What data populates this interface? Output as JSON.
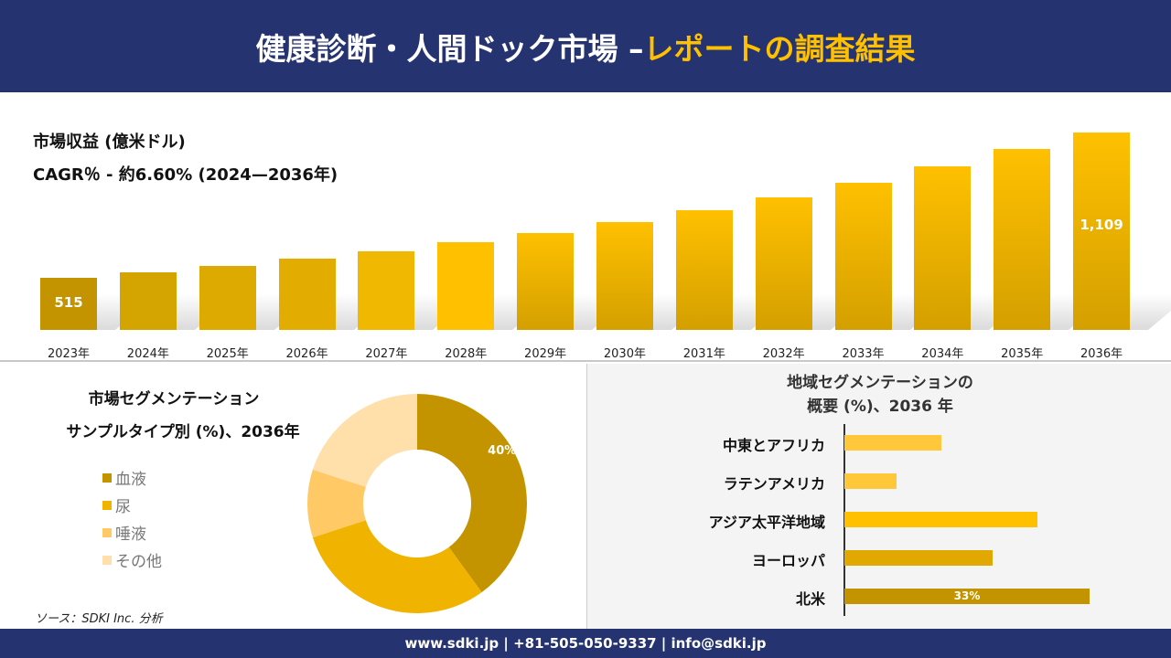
{
  "header": {
    "title_main": "健康診断・人間ドック市場 –",
    "title_accent": "レポートの調査結果"
  },
  "revenue": {
    "title": "市場収益 (億米ドル)",
    "cagr": "CAGR％ - 約6.60% (2024—2036年)"
  },
  "chart_data": [
    {
      "type": "bar",
      "title": "市場収益 (億米ドル)",
      "subtitle": "CAGR％ - 約6.60% (2024—2036年)",
      "categories": [
        "2023年",
        "2024年",
        "2025年",
        "2026年",
        "2027年",
        "2028年",
        "2029年",
        "2030年",
        "2031年",
        "2032年",
        "2033年",
        "2034年",
        "2035年",
        "2036年"
      ],
      "values": [
        515,
        537,
        563,
        593,
        623,
        661,
        698,
        743,
        791,
        844,
        903,
        971,
        1042,
        1109
      ],
      "data_labels": {
        "0": "515",
        "13": "1,109"
      },
      "grid": false
    },
    {
      "type": "pie",
      "donut": true,
      "title": "市場セグメンテーション サンプルタイプ別 (%)、2036年",
      "categories": [
        "血液",
        "尿",
        "唾液",
        "その他"
      ],
      "values": [
        40,
        30,
        10,
        20
      ],
      "colors": [
        "#c49400",
        "#f0b400",
        "#ffc966",
        "#ffdfaa"
      ],
      "data_labels": {
        "0": "40%"
      },
      "legend": "left"
    },
    {
      "type": "bar",
      "orientation": "horizontal",
      "title": "地域セグメンテーションの 概要 (%)、2036 年",
      "categories": [
        "中東とアフリカ",
        "ラテンアメリカ",
        "アジア太平洋地域",
        "ヨーロッパ",
        "北米"
      ],
      "values": [
        13,
        7,
        26,
        20,
        33
      ],
      "colors": [
        "#ffc83a",
        "#ffc83a",
        "#ffc000",
        "#e0a800",
        "#c49400"
      ],
      "data_labels": {
        "4": "33%"
      }
    }
  ],
  "segment": {
    "title1": "市場セグメンテーション",
    "title2": "サンプルタイプ別 (%)、2036年"
  },
  "region": {
    "title1": "地域セグメンテーションの",
    "title2": "概要 (%)、2036 年"
  },
  "source": "ソース：SDKI Inc. 分析",
  "footer": "www.sdki.jp | +81-505-050-9337 | info@sdki.jp",
  "colors": {
    "navy": "#253370",
    "accent": "#ffc000"
  }
}
